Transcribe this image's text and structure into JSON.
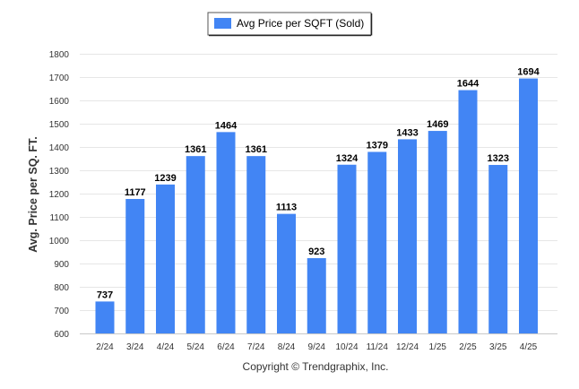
{
  "chart_data": {
    "type": "bar",
    "categories": [
      "2/24",
      "3/24",
      "4/24",
      "5/24",
      "6/24",
      "7/24",
      "8/24",
      "9/24",
      "10/24",
      "11/24",
      "12/24",
      "1/25",
      "2/25",
      "3/25",
      "4/25"
    ],
    "series": [
      {
        "name": "Avg Price per SQFT (Sold)",
        "values": [
          737,
          1177,
          1239,
          1361,
          1464,
          1361,
          1113,
          923,
          1324,
          1379,
          1433,
          1469,
          1644,
          1323,
          1694
        ],
        "color": "#4285f4"
      }
    ],
    "ylabel": "Avg. Price per SQ. FT.",
    "xlabel": "",
    "ylim": [
      600,
      1800
    ],
    "yticks": [
      600,
      700,
      800,
      900,
      1000,
      1100,
      1200,
      1300,
      1400,
      1500,
      1600,
      1700,
      1800
    ],
    "grid": true,
    "legend_position": "top-center",
    "data_labels": true
  },
  "footer": "Copyright © Trendgraphix, Inc."
}
